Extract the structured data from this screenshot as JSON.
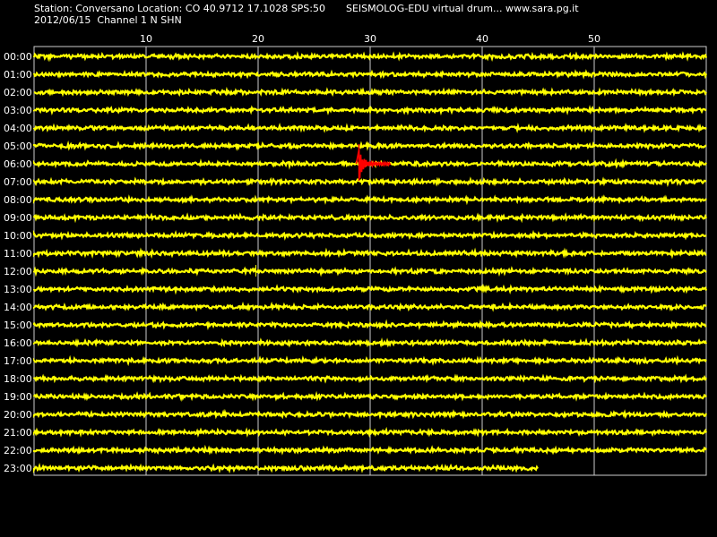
{
  "header": {
    "line1": "Station: Conversano Location: CO 40.9712 17.1028 SPS:50",
    "line2": "2012/06/15  Channel 1 N SHN",
    "site": "SEISMOLOG-EDU virtual drum... www.sara.pg.it"
  },
  "colors": {
    "trace": "#ffff00",
    "event": "#ff0000",
    "grid": "#cccccc",
    "background": "#000000",
    "text": "#ffffff"
  },
  "minute_ticks": [
    "10",
    "20",
    "30",
    "40",
    "50"
  ],
  "hours": [
    "00:00",
    "01:00",
    "02:00",
    "03:00",
    "04:00",
    "05:00",
    "06:00",
    "07:00",
    "08:00",
    "09:00",
    "10:00",
    "11:00",
    "12:00",
    "13:00",
    "14:00",
    "15:00",
    "16:00",
    "17:00",
    "18:00",
    "19:00",
    "20:00",
    "21:00",
    "22:00",
    "23:00"
  ],
  "last_row_minutes": 45,
  "event": {
    "hour_index": 6,
    "minute": 29
  }
}
